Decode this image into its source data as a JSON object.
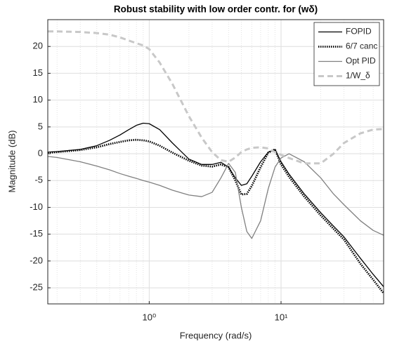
{
  "chart_data": {
    "type": "line",
    "title": "Robust stability with low order contr. for (wδ)",
    "x_label": "Frequency  (rad/s)",
    "y_label": "Magnitude (dB)",
    "x_scale": "log",
    "xlim": [
      0.17,
      60
    ],
    "xticks": [
      {
        "value": 1,
        "label": "10⁰"
      },
      {
        "value": 10,
        "label": "10¹"
      }
    ],
    "ylim": [
      -28,
      25
    ],
    "yticks": [
      -25,
      -20,
      -15,
      -10,
      -5,
      0,
      5,
      10,
      15,
      20
    ],
    "grid": true,
    "minor_grid": true,
    "legend": "upper right",
    "x": [
      0.17,
      0.2,
      0.3,
      0.4,
      0.5,
      0.6,
      0.7,
      0.8,
      0.9,
      1,
      1.2,
      1.5,
      2,
      2.5,
      3,
      3.5,
      4,
      4.5,
      5,
      5.5,
      6,
      7,
      8,
      9,
      10,
      11.5,
      15,
      20,
      25,
      30,
      40,
      50,
      60
    ],
    "series": [
      {
        "name": "FOPID",
        "color": "#000000",
        "dash": "solid",
        "values": [
          0.3,
          0.4,
          0.8,
          1.5,
          2.5,
          3.5,
          4.5,
          5.3,
          5.7,
          5.6,
          4.5,
          2.0,
          -1.0,
          -2.0,
          -2.0,
          -1.6,
          -2.5,
          -4.5,
          -5.9,
          -5.6,
          -4.2,
          -1.5,
          0.3,
          0.8,
          -1.5,
          -3.8,
          -7.5,
          -11,
          -13.5,
          -15.5,
          -19.5,
          -22.5,
          -24.8
        ]
      },
      {
        "name": "6/7 canc",
        "color": "#000000",
        "dash": "dotted",
        "values": [
          0.2,
          0.3,
          0.7,
          1.2,
          1.8,
          2.2,
          2.5,
          2.6,
          2.5,
          2.3,
          1.5,
          0.2,
          -1.3,
          -2.2,
          -2.4,
          -2.0,
          -2.5,
          -5.0,
          -7.6,
          -7.5,
          -6.0,
          -2.5,
          0.2,
          0.8,
          -2,
          -4.3,
          -8,
          -11.5,
          -14,
          -16,
          -20.5,
          -23.5,
          -26
        ]
      },
      {
        "name": "Opt PID",
        "color": "#808080",
        "dash": "solid",
        "values": [
          -0.5,
          -0.7,
          -1.5,
          -2.3,
          -3.0,
          -3.7,
          -4.2,
          -4.6,
          -5.0,
          -5.3,
          -5.9,
          -6.8,
          -7.7,
          -8.0,
          -7.2,
          -4.5,
          -1.8,
          -3.5,
          -10,
          -14.5,
          -15.8,
          -12.5,
          -6.5,
          -2.5,
          -0.8,
          0,
          -1.5,
          -4.5,
          -7.5,
          -9.5,
          -12.5,
          -14.3,
          -15.2
        ]
      },
      {
        "name": "1/W_δ",
        "color": "#c8c8c8",
        "dash": "dashed",
        "values": [
          22.8,
          22.8,
          22.7,
          22.5,
          22.2,
          21.7,
          21.1,
          20.6,
          20.2,
          19.5,
          17,
          13,
          7,
          3,
          0.3,
          -1.2,
          -1.5,
          -0.7,
          0.3,
          0.8,
          1.1,
          1.2,
          1.0,
          0.3,
          -0.2,
          -0.8,
          -1.8,
          -1.8,
          0,
          2,
          3.8,
          4.5,
          4.6
        ]
      }
    ]
  }
}
